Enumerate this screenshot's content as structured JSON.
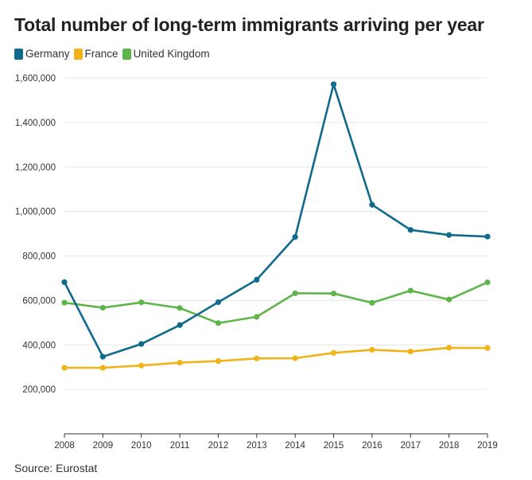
{
  "chart_data": {
    "type": "line",
    "title": "Total number of long-term immigrants arriving per year",
    "xlabel": "",
    "ylabel": "",
    "x": [
      2008,
      2009,
      2010,
      2011,
      2012,
      2013,
      2014,
      2015,
      2016,
      2017,
      2018,
      2019
    ],
    "ylim": [
      0,
      1600000
    ],
    "yticks": [
      200000,
      400000,
      600000,
      800000,
      1000000,
      1200000,
      1400000,
      1600000
    ],
    "ytick_labels": [
      "200,000",
      "400,000",
      "600,000",
      "800,000",
      "1,000,000",
      "1,200,000",
      "1,400,000",
      "1,600,000"
    ],
    "grid": true,
    "legend_position": "top-left",
    "series": [
      {
        "name": "Germany",
        "color": "#0f6a8b",
        "values": [
          682000,
          347000,
          404000,
          489000,
          592000,
          693000,
          885000,
          1572000,
          1030000,
          917000,
          894000,
          887000
        ]
      },
      {
        "name": "France",
        "color": "#f1b319",
        "values": [
          297000,
          297000,
          307000,
          320000,
          327000,
          339000,
          340000,
          364000,
          378000,
          370000,
          387000,
          386000
        ]
      },
      {
        "name": "United Kingdom",
        "color": "#5fb54a",
        "values": [
          590000,
          567000,
          591000,
          566000,
          498000,
          526000,
          632000,
          631000,
          589000,
          644000,
          604000,
          681000
        ]
      }
    ]
  },
  "source_text": "Source: Eurostat"
}
